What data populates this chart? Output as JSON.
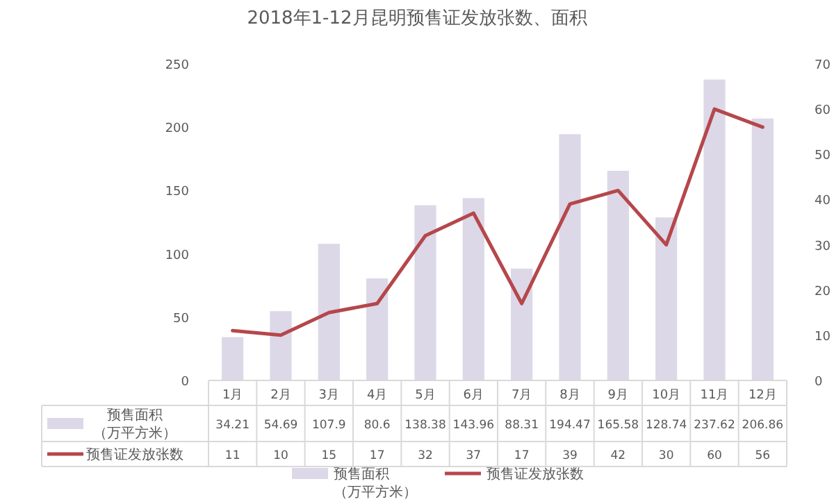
{
  "chart_data": {
    "type": "bar",
    "title": "2018年1-12月昆明预售证发放张数、面积",
    "categories": [
      "1月",
      "2月",
      "3月",
      "4月",
      "5月",
      "6月",
      "7月",
      "8月",
      "9月",
      "10月",
      "11月",
      "12月"
    ],
    "series": [
      {
        "name": "预售面积（万平方米）",
        "color": "#dcd8e8",
        "values": [
          34.21,
          54.69,
          107.9,
          80.6,
          138.38,
          143.96,
          88.31,
          194.47,
          165.58,
          128.74,
          237.62,
          206.86
        ]
      },
      {
        "name": "预售证发放张数",
        "type": "line",
        "axis": "y2",
        "color": "#b5474b",
        "values": [
          11,
          10,
          15,
          17,
          32,
          37,
          17,
          39,
          42,
          30,
          60,
          56
        ]
      }
    ],
    "ylim": [
      0,
      250
    ],
    "yticks": [
      0,
      50,
      100,
      150,
      200,
      250
    ],
    "y2lim": [
      0,
      70
    ],
    "y2ticks": [
      0,
      10,
      20,
      30,
      40,
      50,
      60,
      70
    ],
    "data_labels": true,
    "legend": "bottom",
    "grid": false,
    "marker": "none",
    "line_style": "solid"
  }
}
